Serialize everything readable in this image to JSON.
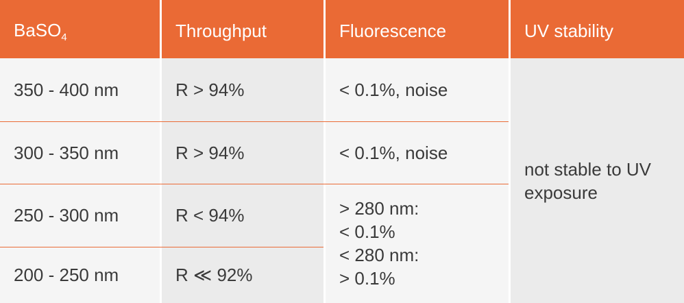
{
  "table": {
    "header": [
      {
        "text": "BaSO",
        "subscript": "4"
      },
      "Throughput",
      "Fluorescence",
      "UV stability"
    ],
    "rows": [
      [
        "350 - 400 nm",
        "R > 94%",
        "< 0.1%, noise"
      ],
      [
        "300 - 350 nm",
        "R > 94%",
        "< 0.1%, noise"
      ],
      [
        "250 - 300 nm",
        "R < 94%"
      ],
      [
        "200 - 250 nm",
        "R ≪ 92%"
      ]
    ],
    "fluorescence_merged": [
      "> 280 nm:",
      "< 0.1%",
      "< 280 nm:",
      "> 0.1%"
    ],
    "uv_stability": "not stable to UV exposure"
  }
}
